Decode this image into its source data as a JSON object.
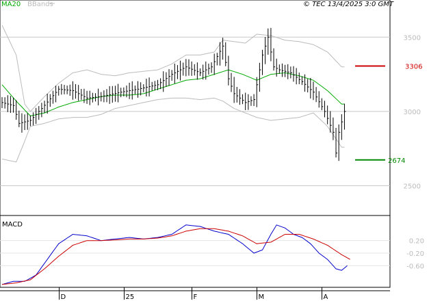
{
  "header": {
    "ma_legend": "MA20",
    "bb_legend": "BBands",
    "copyright": "© TEC 13/4/2025 3:0 GMT"
  },
  "colors": {
    "ma": "#00aa00",
    "bbands": "#bbbbbb",
    "price": "#000000",
    "resistance": "#cc0000",
    "support": "#008800",
    "macd": "#0000cc",
    "signal": "#cc0000",
    "axis_text": "#bbbbbb",
    "grid": "#c8c8c8"
  },
  "chart_data": [
    {
      "type": "bar",
      "description": "OHLC price bars with MA20 and Bollinger Bands",
      "title": "",
      "ylim": [
        2300,
        3750
      ],
      "yticks": [
        {
          "value": 3500,
          "label": "3500"
        },
        {
          "value": 3000,
          "label": "3000"
        },
        {
          "value": 2500,
          "label": "2500"
        }
      ],
      "x_count": 126,
      "x_ticks": [
        {
          "index": 20,
          "label": "D"
        },
        {
          "index": 43,
          "label": "25"
        },
        {
          "index": 67,
          "label": "F"
        },
        {
          "index": 90,
          "label": "M"
        },
        {
          "index": 113,
          "label": "A"
        }
      ],
      "levels": [
        {
          "name": "resistance",
          "value": 3306,
          "label": "3306"
        },
        {
          "name": "support",
          "value": 2674,
          "label": "2674"
        }
      ],
      "keyframes": {
        "price": [
          [
            0,
            3060
          ],
          [
            4,
            3040
          ],
          [
            6,
            2920
          ],
          [
            10,
            2940
          ],
          [
            14,
            3020
          ],
          [
            20,
            3150
          ],
          [
            25,
            3140
          ],
          [
            30,
            3090
          ],
          [
            35,
            3100
          ],
          [
            42,
            3130
          ],
          [
            48,
            3150
          ],
          [
            55,
            3180
          ],
          [
            60,
            3250
          ],
          [
            65,
            3300
          ],
          [
            70,
            3260
          ],
          [
            74,
            3300
          ],
          [
            78,
            3440
          ],
          [
            80,
            3220
          ],
          [
            82,
            3120
          ],
          [
            86,
            3060
          ],
          [
            89,
            3080
          ],
          [
            92,
            3380
          ],
          [
            94,
            3500
          ],
          [
            96,
            3300
          ],
          [
            98,
            3280
          ],
          [
            102,
            3260
          ],
          [
            106,
            3200
          ],
          [
            110,
            3130
          ],
          [
            114,
            3000
          ],
          [
            117,
            2860
          ],
          [
            118,
            2720
          ],
          [
            119,
            2860
          ],
          [
            121,
            3000
          ]
        ],
        "ma": [
          [
            0,
            3180
          ],
          [
            5,
            3070
          ],
          [
            10,
            2970
          ],
          [
            15,
            2990
          ],
          [
            20,
            3030
          ],
          [
            25,
            3060
          ],
          [
            30,
            3080
          ],
          [
            35,
            3100
          ],
          [
            40,
            3110
          ],
          [
            45,
            3110
          ],
          [
            50,
            3120
          ],
          [
            55,
            3150
          ],
          [
            60,
            3180
          ],
          [
            65,
            3210
          ],
          [
            70,
            3220
          ],
          [
            75,
            3250
          ],
          [
            80,
            3280
          ],
          [
            85,
            3250
          ],
          [
            90,
            3210
          ],
          [
            95,
            3250
          ],
          [
            100,
            3260
          ],
          [
            105,
            3240
          ],
          [
            110,
            3210
          ],
          [
            115,
            3140
          ],
          [
            120,
            3050
          ]
        ],
        "bb_upper": [
          [
            0,
            3580
          ],
          [
            5,
            3380
          ],
          [
            8,
            3050
          ],
          [
            10,
            3000
          ],
          [
            15,
            3100
          ],
          [
            20,
            3190
          ],
          [
            25,
            3260
          ],
          [
            30,
            3280
          ],
          [
            35,
            3250
          ],
          [
            40,
            3240
          ],
          [
            45,
            3260
          ],
          [
            50,
            3270
          ],
          [
            55,
            3280
          ],
          [
            60,
            3320
          ],
          [
            65,
            3380
          ],
          [
            70,
            3380
          ],
          [
            75,
            3400
          ],
          [
            78,
            3480
          ],
          [
            82,
            3470
          ],
          [
            86,
            3460
          ],
          [
            90,
            3520
          ],
          [
            95,
            3510
          ],
          [
            100,
            3480
          ],
          [
            105,
            3470
          ],
          [
            110,
            3450
          ],
          [
            115,
            3400
          ],
          [
            120,
            3300
          ]
        ],
        "bb_lower": [
          [
            0,
            2680
          ],
          [
            5,
            2660
          ],
          [
            8,
            2800
          ],
          [
            10,
            2900
          ],
          [
            15,
            2920
          ],
          [
            20,
            2950
          ],
          [
            25,
            2960
          ],
          [
            30,
            2960
          ],
          [
            35,
            2980
          ],
          [
            40,
            3020
          ],
          [
            45,
            3040
          ],
          [
            50,
            3060
          ],
          [
            55,
            3080
          ],
          [
            60,
            3090
          ],
          [
            65,
            3090
          ],
          [
            70,
            3080
          ],
          [
            75,
            3090
          ],
          [
            78,
            3070
          ],
          [
            82,
            3020
          ],
          [
            86,
            2990
          ],
          [
            90,
            2960
          ],
          [
            95,
            2940
          ],
          [
            100,
            2950
          ],
          [
            105,
            2960
          ],
          [
            110,
            2990
          ],
          [
            115,
            2900
          ],
          [
            120,
            2760
          ]
        ]
      }
    },
    {
      "type": "line",
      "description": "MACD indicator panel",
      "title": "MACD",
      "ylim": [
        -140,
        100
      ],
      "yticks": [
        {
          "value": 20,
          "label": "0.20"
        },
        {
          "value": -20,
          "label": "-0.20"
        },
        {
          "value": -60,
          "label": "-0.60"
        }
      ],
      "series": [
        {
          "name": "MACD",
          "keyframes": [
            [
              0,
              -120
            ],
            [
              4,
              -110
            ],
            [
              8,
              -110
            ],
            [
              12,
              -90
            ],
            [
              16,
              -40
            ],
            [
              20,
              10
            ],
            [
              25,
              40
            ],
            [
              30,
              35
            ],
            [
              35,
              20
            ],
            [
              40,
              25
            ],
            [
              45,
              30
            ],
            [
              50,
              25
            ],
            [
              55,
              30
            ],
            [
              60,
              40
            ],
            [
              65,
              70
            ],
            [
              70,
              65
            ],
            [
              75,
              50
            ],
            [
              80,
              40
            ],
            [
              85,
              10
            ],
            [
              89,
              -20
            ],
            [
              92,
              -10
            ],
            [
              95,
              40
            ],
            [
              97,
              70
            ],
            [
              100,
              60
            ],
            [
              103,
              40
            ],
            [
              106,
              30
            ],
            [
              109,
              10
            ],
            [
              112,
              -20
            ],
            [
              115,
              -40
            ],
            [
              118,
              -70
            ],
            [
              120,
              -75
            ],
            [
              122,
              -60
            ]
          ]
        },
        {
          "name": "Signal",
          "keyframes": [
            [
              0,
              -120
            ],
            [
              5,
              -115
            ],
            [
              10,
              -105
            ],
            [
              15,
              -70
            ],
            [
              20,
              -30
            ],
            [
              25,
              5
            ],
            [
              30,
              20
            ],
            [
              35,
              20
            ],
            [
              40,
              22
            ],
            [
              45,
              25
            ],
            [
              50,
              25
            ],
            [
              55,
              28
            ],
            [
              60,
              35
            ],
            [
              65,
              50
            ],
            [
              70,
              58
            ],
            [
              75,
              58
            ],
            [
              80,
              50
            ],
            [
              85,
              35
            ],
            [
              90,
              10
            ],
            [
              95,
              15
            ],
            [
              100,
              40
            ],
            [
              105,
              40
            ],
            [
              110,
              25
            ],
            [
              115,
              5
            ],
            [
              120,
              -25
            ],
            [
              123,
              -40
            ]
          ]
        }
      ]
    }
  ]
}
